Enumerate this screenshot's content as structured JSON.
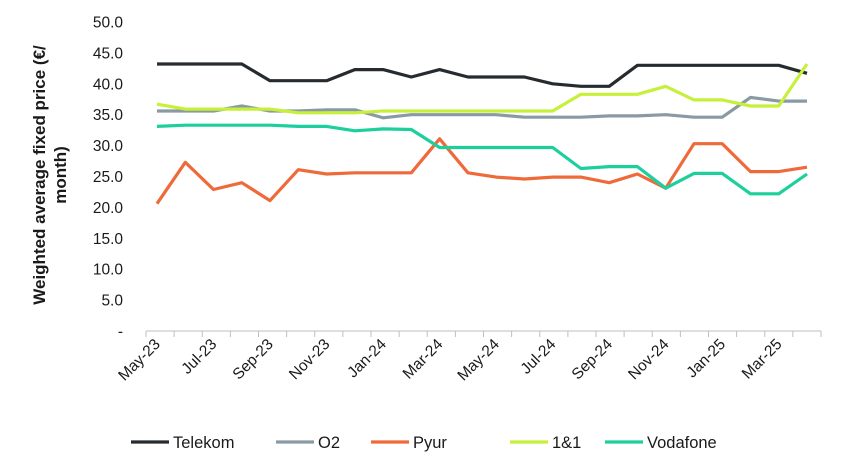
{
  "chart_data": {
    "type": "line",
    "title": "",
    "ylabel_line1": "Weighted average fixed price (€/",
    "ylabel_line2": "month)",
    "ylim": [
      0,
      50
    ],
    "yticks": [
      0,
      5,
      10,
      15,
      20,
      25,
      30,
      35,
      40,
      45,
      50
    ],
    "ytick_labels": [
      "-",
      "5.0",
      "10.0",
      "15.0",
      "20.0",
      "25.0",
      "30.0",
      "35.0",
      "40.0",
      "45.0",
      "50.0"
    ],
    "x": [
      "May-23",
      "Jun-23",
      "Jul-23",
      "Aug-23",
      "Sep-23",
      "Oct-23",
      "Nov-23",
      "Dec-23",
      "Jan-24",
      "Feb-24",
      "Mar-24",
      "Apr-24",
      "May-24",
      "Jun-24",
      "Jul-24",
      "Aug-24",
      "Sep-24",
      "Oct-24",
      "Nov-24",
      "Dec-24",
      "Jan-25",
      "Feb-25",
      "Mar-25",
      "Apr-25"
    ],
    "xtick_labels": [
      "May-23",
      "Jul-23",
      "Sep-23",
      "Nov-23",
      "Jan-24",
      "Mar-24",
      "May-24",
      "Jul-24",
      "Sep-24",
      "Nov-24",
      "Jan-25",
      "Mar-25"
    ],
    "legend_position": "bottom",
    "grid": false,
    "series": [
      {
        "name": "Telekom",
        "color": "#262b30",
        "values": [
          43.2,
          43.2,
          43.2,
          43.2,
          40.5,
          40.5,
          40.5,
          42.3,
          42.3,
          41.1,
          42.3,
          41.1,
          41.1,
          41.1,
          40.0,
          39.6,
          39.6,
          43.0,
          43.0,
          43.0,
          43.0,
          43.0,
          43.0,
          41.7
        ]
      },
      {
        "name": "O2",
        "color": "#8a9aa4",
        "values": [
          35.6,
          35.6,
          35.6,
          36.4,
          35.6,
          35.6,
          35.8,
          35.8,
          34.5,
          35.0,
          35.0,
          35.0,
          35.0,
          34.6,
          34.6,
          34.6,
          34.8,
          34.8,
          35.0,
          34.6,
          34.6,
          37.8,
          37.2,
          37.2
        ]
      },
      {
        "name": "Pyur",
        "color": "#ef6a3a",
        "values": [
          20.6,
          27.3,
          22.9,
          24.0,
          21.1,
          26.1,
          25.4,
          25.6,
          25.6,
          25.6,
          31.1,
          25.6,
          24.9,
          24.6,
          24.9,
          24.9,
          24.0,
          25.4,
          23.1,
          30.3,
          30.3,
          25.8,
          25.8,
          26.5
        ]
      },
      {
        "name": "1&1",
        "color": "#c6f03a",
        "values": [
          36.7,
          35.9,
          35.9,
          35.9,
          35.9,
          35.3,
          35.3,
          35.3,
          35.6,
          35.6,
          35.6,
          35.6,
          35.6,
          35.6,
          35.6,
          38.3,
          38.3,
          38.3,
          39.6,
          37.4,
          37.4,
          36.4,
          36.4,
          43.2
        ]
      },
      {
        "name": "Vodafone",
        "color": "#1dcf9c",
        "values": [
          33.1,
          33.3,
          33.3,
          33.3,
          33.3,
          33.1,
          33.1,
          32.4,
          32.7,
          32.6,
          29.7,
          29.7,
          29.7,
          29.7,
          29.7,
          26.3,
          26.6,
          26.6,
          23.1,
          25.5,
          25.5,
          22.2,
          22.2,
          25.4
        ]
      }
    ]
  }
}
